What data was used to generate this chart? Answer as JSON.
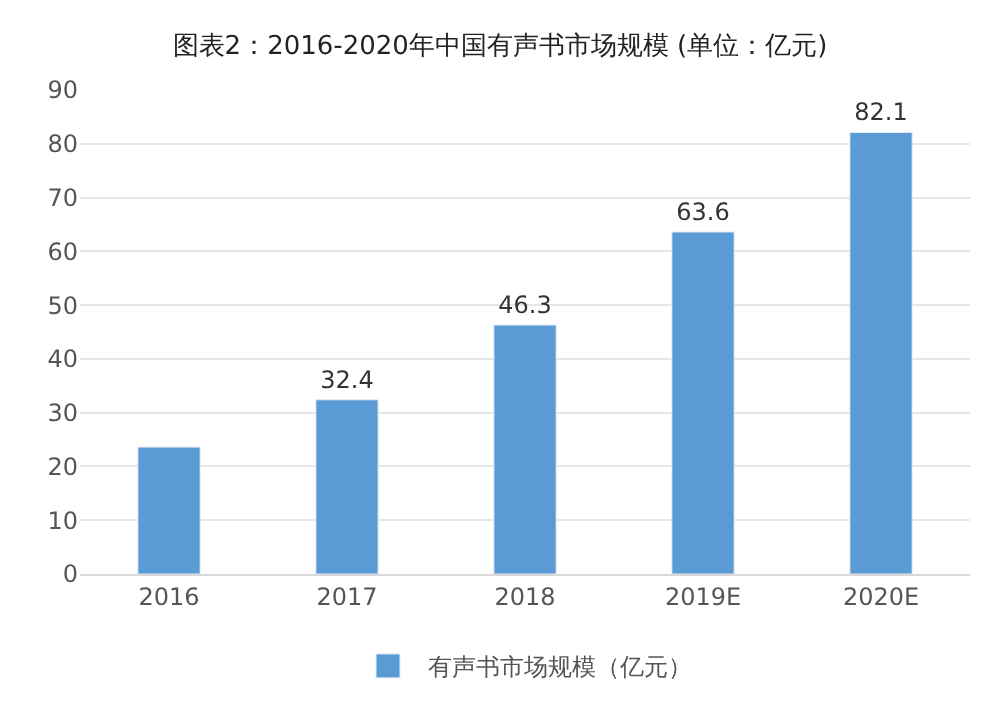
{
  "chart_data": {
    "type": "bar",
    "title": "图表2：2016-2020年中国有声书市场规模 (单位：亿元)",
    "categories": [
      "2016",
      "2017",
      "2018",
      "2019E",
      "2020E"
    ],
    "series": [
      {
        "name": "有声书市场规模（亿元）",
        "color": "#5b9bd5",
        "values": [
          23.6,
          32.4,
          46.3,
          63.6,
          82.1
        ],
        "value_labels": [
          null,
          "32.4",
          "46.3",
          "63.6",
          "82.1"
        ]
      }
    ],
    "ylim": [
      0,
      90
    ],
    "yticks": [
      0,
      10,
      20,
      30,
      40,
      50,
      60,
      70,
      80,
      90
    ],
    "grid": "y",
    "legend": "bottom"
  }
}
